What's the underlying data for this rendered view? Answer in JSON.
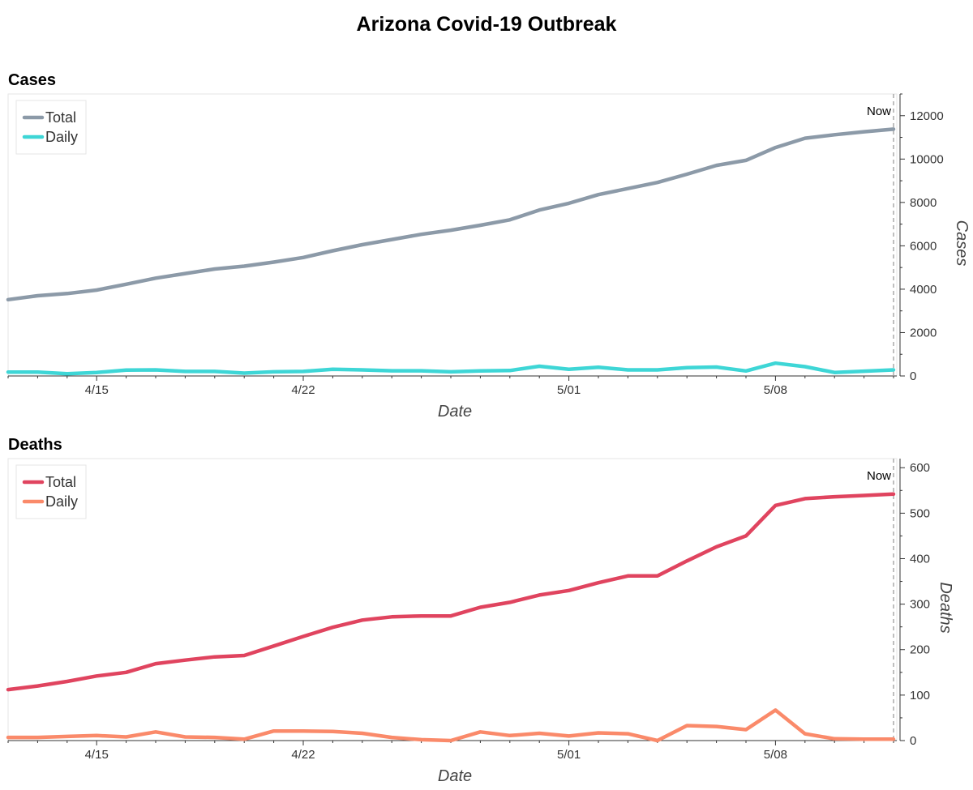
{
  "page_title": "Arizona Covid-19 Outbreak",
  "x_dates": [
    "4/12",
    "4/13",
    "4/14",
    "4/15",
    "4/16",
    "4/17",
    "4/18",
    "4/19",
    "4/20",
    "4/21",
    "4/22",
    "4/23",
    "4/24",
    "4/25",
    "4/26",
    "4/27",
    "4/28",
    "4/29",
    "4/30",
    "5/01",
    "5/02",
    "5/03",
    "5/04",
    "5/05",
    "5/06",
    "5/07",
    "5/08",
    "5/09",
    "5/10",
    "5/11",
    "5/12"
  ],
  "chart_data": [
    {
      "type": "line",
      "title": "Cases",
      "xlabel": "Date",
      "ylabel": "Cases",
      "x_ticks": [
        "4/15",
        "4/22",
        "5/01",
        "5/08"
      ],
      "y_ticks": [
        0,
        2000,
        4000,
        6000,
        8000,
        10000,
        12000
      ],
      "ylim": [
        0,
        13000
      ],
      "y_axis_position": "right",
      "legend_position": "top-left",
      "grid": false,
      "marker_label": "Now",
      "series": [
        {
          "name": "Total",
          "color": "#8c9aa8",
          "values": [
            3520,
            3700,
            3800,
            3960,
            4230,
            4510,
            4720,
            4930,
            5060,
            5250,
            5460,
            5770,
            6050,
            6290,
            6530,
            6720,
            6950,
            7200,
            7650,
            7960,
            8360,
            8640,
            8920,
            9300,
            9710,
            9940,
            10530,
            10960,
            11120,
            11260,
            11380
          ]
        },
        {
          "name": "Daily",
          "color": "#3ed6d6",
          "values": [
            180,
            180,
            100,
            160,
            270,
            280,
            210,
            210,
            130,
            190,
            210,
            310,
            280,
            240,
            240,
            190,
            230,
            250,
            450,
            310,
            400,
            280,
            280,
            380,
            410,
            230,
            590,
            430,
            160,
            220,
            280
          ]
        }
      ]
    },
    {
      "type": "line",
      "title": "Deaths",
      "xlabel": "Date",
      "ylabel": "Deaths",
      "x_ticks": [
        "4/15",
        "4/22",
        "5/01",
        "5/08"
      ],
      "y_ticks": [
        0,
        100,
        200,
        300,
        400,
        500,
        600
      ],
      "ylim": [
        0,
        620
      ],
      "y_axis_position": "right",
      "legend_position": "top-left",
      "grid": false,
      "marker_label": "Now",
      "series": [
        {
          "name": "Total",
          "color": "#e0445f",
          "values": [
            112,
            120,
            130,
            142,
            150,
            169,
            177,
            184,
            187,
            208,
            229,
            249,
            265,
            272,
            274,
            274,
            293,
            304,
            320,
            330,
            347,
            362,
            362,
            395,
            426,
            450,
            517,
            532,
            536,
            539,
            542
          ]
        },
        {
          "name": "Daily",
          "color": "#fa8a6a",
          "values": [
            7,
            7,
            9,
            11,
            8,
            19,
            8,
            7,
            3,
            21,
            21,
            20,
            16,
            7,
            2,
            0,
            19,
            11,
            16,
            10,
            17,
            15,
            0,
            33,
            31,
            24,
            67,
            15,
            4,
            3,
            3
          ]
        }
      ]
    }
  ]
}
